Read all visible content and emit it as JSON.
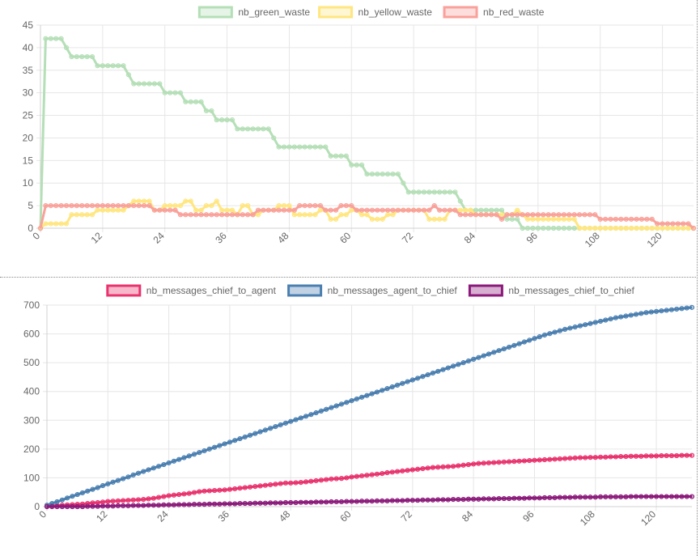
{
  "chart_data": [
    {
      "type": "line",
      "x": [
        0,
        1,
        2,
        3,
        4,
        5,
        6,
        7,
        8,
        9,
        10,
        11,
        12,
        13,
        14,
        15,
        16,
        17,
        18,
        19,
        20,
        21,
        22,
        23,
        24,
        25,
        26,
        27,
        28,
        29,
        30,
        31,
        32,
        33,
        34,
        35,
        36,
        37,
        38,
        39,
        40,
        41,
        42,
        43,
        44,
        45,
        46,
        47,
        48,
        49,
        50,
        51,
        52,
        53,
        54,
        55,
        56,
        57,
        58,
        59,
        60,
        61,
        62,
        63,
        64,
        65,
        66,
        67,
        68,
        69,
        70,
        71,
        72,
        73,
        74,
        75,
        76,
        77,
        78,
        79,
        80,
        81,
        82,
        83,
        84,
        85,
        86,
        87,
        88,
        89,
        90,
        91,
        92,
        93,
        94,
        95,
        96,
        97,
        98,
        99,
        100,
        101,
        102,
        103,
        104,
        105,
        106,
        107,
        108,
        109,
        110,
        111,
        112,
        113,
        114,
        115,
        116,
        117,
        118,
        119,
        120,
        121,
        122,
        123,
        124,
        125,
        126
      ],
      "xticks": [
        0,
        12,
        24,
        36,
        48,
        60,
        72,
        84,
        96,
        108,
        120
      ],
      "ylim": [
        0,
        45
      ],
      "yticks": [
        0,
        5,
        10,
        15,
        20,
        25,
        30,
        35,
        40,
        45
      ],
      "legend_position": "top",
      "grid": true,
      "series": [
        {
          "name": "nb_green_waste",
          "color": "#b5dfb7",
          "values": [
            0,
            42,
            42,
            42,
            42,
            40,
            38,
            38,
            38,
            38,
            38,
            36,
            36,
            36,
            36,
            36,
            36,
            34,
            32,
            32,
            32,
            32,
            32,
            32,
            30,
            30,
            30,
            30,
            28,
            28,
            28,
            28,
            26,
            26,
            24,
            24,
            24,
            24,
            22,
            22,
            22,
            22,
            22,
            22,
            22,
            20,
            18,
            18,
            18,
            18,
            18,
            18,
            18,
            18,
            18,
            18,
            16,
            16,
            16,
            16,
            14,
            14,
            14,
            12,
            12,
            12,
            12,
            12,
            12,
            12,
            10,
            8,
            8,
            8,
            8,
            8,
            8,
            8,
            8,
            8,
            8,
            6,
            4,
            4,
            4,
            4,
            4,
            4,
            4,
            4,
            2,
            2,
            2,
            0,
            0,
            0,
            0,
            0,
            0,
            0,
            0,
            0,
            0,
            0,
            0,
            0,
            0,
            0,
            0,
            0,
            0,
            0,
            0,
            0,
            0,
            0,
            0,
            0,
            0,
            0,
            0,
            0,
            0,
            0,
            0,
            0,
            0
          ]
        },
        {
          "name": "nb_yellow_waste",
          "color": "#ffe680",
          "values": [
            0,
            1,
            1,
            1,
            1,
            1,
            3,
            3,
            3,
            3,
            3,
            4,
            4,
            4,
            4,
            4,
            4,
            5,
            6,
            6,
            6,
            6,
            4,
            4,
            5,
            5,
            5,
            5,
            6,
            6,
            4,
            4,
            5,
            5,
            6,
            4,
            4,
            4,
            3,
            5,
            5,
            3,
            3,
            4,
            4,
            4,
            5,
            5,
            5,
            3,
            3,
            3,
            3,
            3,
            4,
            4,
            2,
            2,
            3,
            3,
            4,
            4,
            3,
            3,
            2,
            2,
            2,
            3,
            3,
            4,
            4,
            4,
            4,
            4,
            4,
            2,
            2,
            2,
            2,
            4,
            4,
            4,
            4,
            4,
            3,
            3,
            3,
            3,
            3,
            3,
            3,
            3,
            4,
            3,
            2,
            2,
            2,
            2,
            2,
            2,
            2,
            2,
            2,
            2,
            0,
            0,
            0,
            0,
            0,
            0,
            0,
            0,
            0,
            0,
            0,
            0,
            0,
            0,
            0,
            0,
            0,
            0,
            0,
            0,
            0,
            0,
            0
          ]
        },
        {
          "name": "nb_red_waste",
          "color": "#f9a19a",
          "values": [
            0,
            5,
            5,
            5,
            5,
            5,
            5,
            5,
            5,
            5,
            5,
            5,
            5,
            5,
            5,
            5,
            5,
            5,
            5,
            5,
            5,
            5,
            4,
            4,
            4,
            4,
            4,
            3,
            3,
            3,
            3,
            3,
            3,
            3,
            3,
            3,
            3,
            3,
            3,
            3,
            3,
            3,
            4,
            4,
            4,
            4,
            4,
            4,
            4,
            4,
            5,
            5,
            5,
            5,
            5,
            4,
            4,
            4,
            5,
            5,
            5,
            4,
            4,
            4,
            4,
            4,
            4,
            4,
            4,
            4,
            4,
            4,
            4,
            4,
            4,
            4,
            5,
            4,
            4,
            4,
            4,
            3,
            3,
            3,
            3,
            3,
            3,
            3,
            3,
            2,
            3,
            3,
            3,
            3,
            3,
            3,
            3,
            3,
            3,
            3,
            3,
            3,
            3,
            3,
            3,
            3,
            3,
            3,
            2,
            2,
            2,
            2,
            2,
            2,
            2,
            2,
            2,
            2,
            2,
            1,
            1,
            1,
            1,
            1,
            1,
            1,
            0
          ]
        }
      ]
    },
    {
      "type": "line",
      "x": [
        0,
        1,
        2,
        3,
        4,
        5,
        6,
        7,
        8,
        9,
        10,
        11,
        12,
        13,
        14,
        15,
        16,
        17,
        18,
        19,
        20,
        21,
        22,
        23,
        24,
        25,
        26,
        27,
        28,
        29,
        30,
        31,
        32,
        33,
        34,
        35,
        36,
        37,
        38,
        39,
        40,
        41,
        42,
        43,
        44,
        45,
        46,
        47,
        48,
        49,
        50,
        51,
        52,
        53,
        54,
        55,
        56,
        57,
        58,
        59,
        60,
        61,
        62,
        63,
        64,
        65,
        66,
        67,
        68,
        69,
        70,
        71,
        72,
        73,
        74,
        75,
        76,
        77,
        78,
        79,
        80,
        81,
        82,
        83,
        84,
        85,
        86,
        87,
        88,
        89,
        90,
        91,
        92,
        93,
        94,
        95,
        96,
        97,
        98,
        99,
        100,
        101,
        102,
        103,
        104,
        105,
        106,
        107,
        108,
        109,
        110,
        111,
        112,
        113,
        114,
        115,
        116,
        117,
        118,
        119,
        120,
        121,
        122,
        123,
        124,
        125,
        126,
        127
      ],
      "xticks": [
        0,
        12,
        24,
        36,
        48,
        60,
        72,
        84,
        96,
        108,
        120
      ],
      "ylim": [
        0,
        700
      ],
      "yticks": [
        0,
        100,
        200,
        300,
        400,
        500,
        600,
        700
      ],
      "legend_position": "top",
      "grid": true,
      "series": [
        {
          "name": "nb_messages_chief_to_agent",
          "color": "#e8336e",
          "values": [
            2,
            3,
            4,
            5,
            6,
            7,
            8,
            9,
            11,
            13,
            14,
            16,
            18,
            19,
            20,
            21,
            22,
            23,
            24,
            25,
            27,
            29,
            32,
            35,
            38,
            40,
            42,
            44,
            46,
            49,
            52,
            54,
            55,
            56,
            57,
            58,
            60,
            62,
            64,
            66,
            68,
            70,
            72,
            74,
            76,
            78,
            80,
            82,
            82,
            83,
            84,
            86,
            88,
            90,
            92,
            94,
            96,
            97,
            98,
            100,
            103,
            105,
            107,
            109,
            111,
            113,
            115,
            118,
            120,
            122,
            124,
            126,
            128,
            130,
            132,
            134,
            136,
            137,
            138,
            139,
            140,
            142,
            144,
            146,
            148,
            150,
            151,
            152,
            153,
            154,
            155,
            156,
            157,
            158,
            159,
            160,
            161,
            162,
            163,
            164,
            165,
            166,
            167,
            168,
            169,
            170,
            170,
            171,
            171,
            172,
            172,
            173,
            173,
            174,
            174,
            175,
            175,
            175,
            176,
            176,
            176,
            177,
            177,
            177,
            177,
            178,
            178,
            178
          ]
        },
        {
          "name": "nb_messages_agent_to_chief",
          "color": "#4a7fb0",
          "values": [
            5,
            11,
            17,
            23,
            30,
            36,
            42,
            48,
            54,
            60,
            66,
            73,
            79,
            85,
            91,
            97,
            103,
            110,
            116,
            122,
            128,
            134,
            140,
            146,
            152,
            158,
            164,
            170,
            176,
            182,
            188,
            194,
            200,
            206,
            212,
            218,
            224,
            230,
            236,
            242,
            248,
            254,
            260,
            266,
            272,
            278,
            284,
            290,
            296,
            302,
            308,
            314,
            320,
            326,
            332,
            338,
            344,
            350,
            356,
            362,
            368,
            374,
            380,
            386,
            392,
            398,
            404,
            410,
            416,
            422,
            428,
            434,
            440,
            446,
            452,
            458,
            464,
            470,
            476,
            482,
            488,
            494,
            500,
            506,
            512,
            518,
            524,
            530,
            536,
            542,
            548,
            554,
            560,
            566,
            572,
            578,
            584,
            590,
            596,
            601,
            606,
            611,
            616,
            620,
            624,
            628,
            632,
            636,
            640,
            644,
            648,
            652,
            656,
            659,
            662,
            665,
            668,
            671,
            674,
            676,
            678,
            680,
            682,
            684,
            686,
            688,
            690,
            692
          ]
        },
        {
          "name": "nb_messages_chief_to_chief",
          "color": "#8b1a7a",
          "values": [
            0,
            0,
            0,
            0,
            0,
            0,
            0,
            0,
            1,
            1,
            1,
            2,
            2,
            2,
            3,
            3,
            3,
            4,
            4,
            4,
            5,
            5,
            5,
            6,
            6,
            6,
            7,
            7,
            7,
            8,
            8,
            8,
            9,
            9,
            9,
            10,
            10,
            10,
            11,
            11,
            11,
            12,
            12,
            12,
            13,
            13,
            13,
            14,
            14,
            14,
            15,
            15,
            15,
            16,
            16,
            16,
            17,
            17,
            17,
            18,
            18,
            18,
            19,
            19,
            19,
            20,
            20,
            20,
            21,
            21,
            21,
            22,
            22,
            22,
            23,
            23,
            23,
            24,
            24,
            24,
            25,
            25,
            25,
            26,
            26,
            26,
            27,
            27,
            27,
            28,
            28,
            28,
            29,
            29,
            29,
            30,
            30,
            30,
            31,
            31,
            31,
            32,
            32,
            32,
            33,
            33,
            33,
            33,
            33,
            34,
            34,
            34,
            34,
            34,
            34,
            35,
            35,
            35,
            35,
            35,
            35,
            35,
            35,
            35,
            35,
            35,
            35,
            35
          ]
        }
      ]
    }
  ]
}
